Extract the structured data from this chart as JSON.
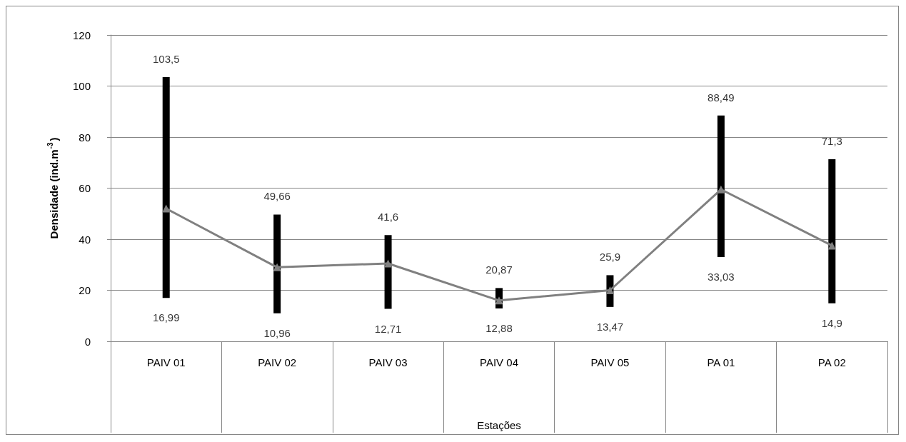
{
  "chart_data": {
    "type": "line",
    "xlabel": "Estações",
    "ylabel": "Densidade (ind.m$^{-3}$)",
    "categories": [
      "PAIV 01",
      "PAIV 02",
      "PAIV 03",
      "PAIV 04",
      "PAIV 05",
      "PA 01",
      "PA 02"
    ],
    "series": [
      {
        "type": "bar",
        "color": "#000000",
        "base": [
          16.99,
          10.96,
          12.71,
          12.88,
          13.47,
          33.03,
          14.9
        ],
        "values": [
          86.51,
          38.7,
          28.89,
          7.99,
          12.43,
          55.46,
          56.4
        ]
      },
      {
        "color": "#808080",
        "values": [
          52,
          29,
          30.5,
          16,
          20,
          59.5,
          37.5
        ]
      }
    ],
    "annotations": [
      {
        "text": "103,5",
        "x": "PAIV 01",
        "y": 103.5
      },
      {
        "text": "16,99",
        "x": "PAIV 01",
        "y": 16.99
      },
      {
        "text": "49,66",
        "x": "PAIV 02",
        "y": 49.66
      },
      {
        "text": "10,96",
        "x": "PAIV 02",
        "y": 10.96
      },
      {
        "text": "41,6",
        "x": "PAIV 03",
        "y": 41.6
      },
      {
        "text": "12,71",
        "x": "PAIV 03",
        "y": 12.71
      },
      {
        "text": "20,87",
        "x": "PAIV 04",
        "y": 20.87
      },
      {
        "text": "12,88",
        "x": "PAIV 04",
        "y": 12.88
      },
      {
        "text": "25,9",
        "x": "PAIV 05",
        "y": 25.9
      },
      {
        "text": "13,47",
        "x": "PAIV 05",
        "y": 13.47
      },
      {
        "text": "88,49",
        "x": "PA 01",
        "y": 88.49
      },
      {
        "text": "33,03",
        "x": "PA 01",
        "y": 33.03
      },
      {
        "text": "71,3",
        "x": "PA 02",
        "y": 71.3
      },
      {
        "text": "14,9",
        "x": "PA 02",
        "y": 14.9
      }
    ],
    "ylim": [
      0,
      120
    ],
    "yticks": [
      0,
      20,
      40,
      60,
      80,
      100,
      120
    ],
    "grid": "y",
    "marker": "triangle",
    "line_style": "solid"
  }
}
